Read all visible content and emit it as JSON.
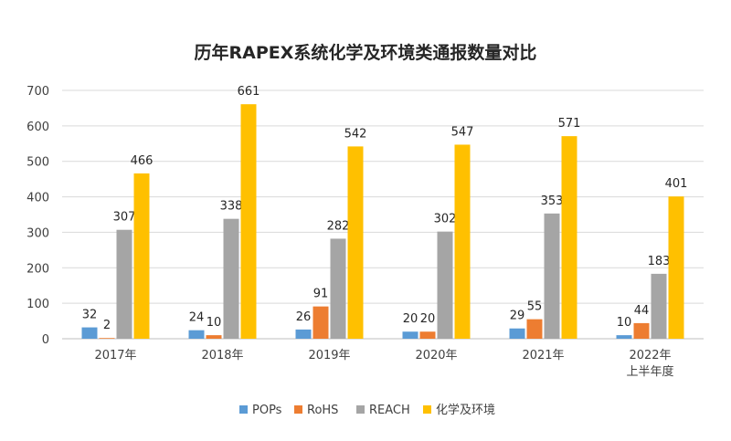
{
  "chart_data": {
    "type": "bar",
    "title": "历年RAPEX系统化学及环境类通报数量对比",
    "categories": [
      [
        "2017年"
      ],
      [
        "2018年"
      ],
      [
        "2019年"
      ],
      [
        "2020年"
      ],
      [
        "2021年"
      ],
      [
        "2022年",
        "上半年度"
      ]
    ],
    "series": [
      {
        "name": "POPs",
        "color": "#5b9bd5",
        "values": [
          32,
          24,
          26,
          20,
          29,
          10
        ]
      },
      {
        "name": "RoHS",
        "color": "#ed7d31",
        "values": [
          2,
          10,
          91,
          20,
          55,
          44
        ]
      },
      {
        "name": "REACH",
        "color": "#a5a5a5",
        "values": [
          307,
          338,
          282,
          302,
          353,
          183
        ]
      },
      {
        "name": "化学及环境",
        "color": "#ffc000",
        "values": [
          466,
          661,
          542,
          547,
          571,
          401
        ]
      }
    ],
    "yticks": [
      0,
      100,
      200,
      300,
      400,
      500,
      600,
      700
    ],
    "ylim": [
      0,
      700
    ],
    "grid": true,
    "legend_position": "bottom"
  }
}
